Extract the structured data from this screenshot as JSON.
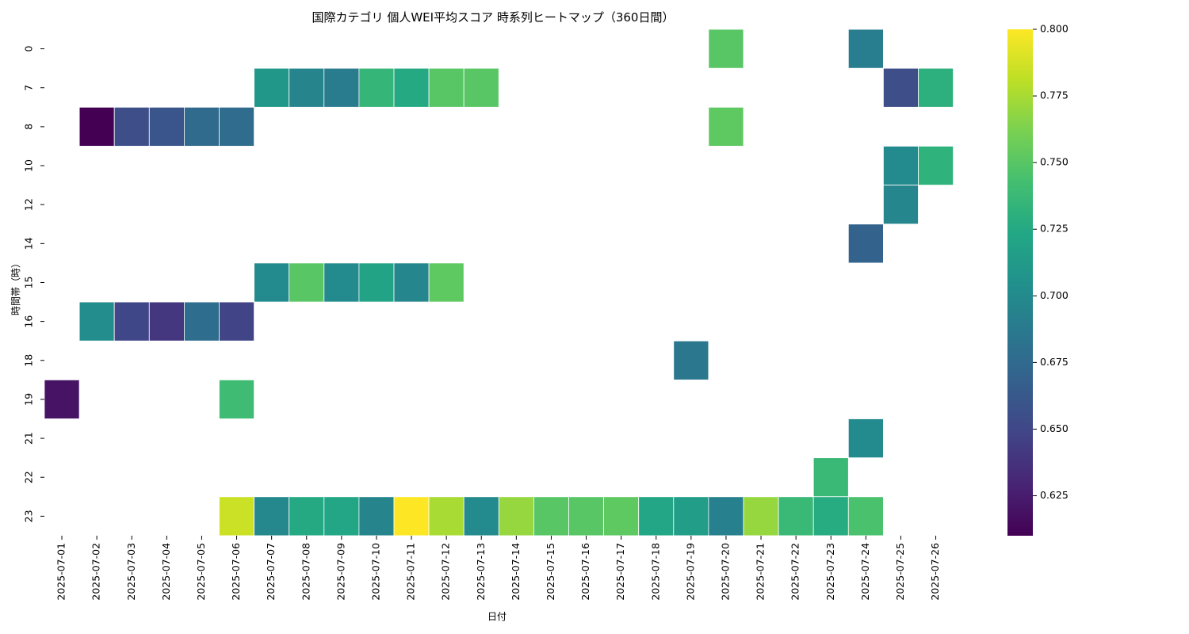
{
  "chart_data": {
    "type": "heatmap",
    "title": "国際カテゴリ 個人WEI平均スコア 時系列ヒートマップ（360日間）",
    "xlabel": "日付",
    "ylabel": "時間帯（時）",
    "colormap": "viridis",
    "colorbar": {
      "min": 0.61,
      "max": 0.8,
      "ticks": [
        0.625,
        0.65,
        0.675,
        0.7,
        0.725,
        0.75,
        0.775,
        0.8
      ],
      "tick_labels": [
        "0.625",
        "0.650",
        "0.675",
        "0.700",
        "0.725",
        "0.750",
        "0.775",
        "0.800"
      ],
      "placement": "right"
    },
    "grid": false,
    "x_categories": [
      "2025-07-01",
      "2025-07-02",
      "2025-07-03",
      "2025-07-04",
      "2025-07-05",
      "2025-07-06",
      "2025-07-07",
      "2025-07-08",
      "2025-07-09",
      "2025-07-10",
      "2025-07-11",
      "2025-07-12",
      "2025-07-13",
      "2025-07-14",
      "2025-07-15",
      "2025-07-16",
      "2025-07-17",
      "2025-07-18",
      "2025-07-19",
      "2025-07-20",
      "2025-07-21",
      "2025-07-22",
      "2025-07-23",
      "2025-07-24",
      "2025-07-25",
      "2025-07-26"
    ],
    "y_categories": [
      "0",
      "7",
      "8",
      "10",
      "12",
      "14",
      "15",
      "16",
      "18",
      "19",
      "21",
      "22",
      "23"
    ],
    "cells": [
      {
        "x": "2025-07-20",
        "y": "0",
        "value": 0.75
      },
      {
        "x": "2025-07-24",
        "y": "0",
        "value": 0.69
      },
      {
        "x": "2025-07-07",
        "y": "7",
        "value": 0.71
      },
      {
        "x": "2025-07-08",
        "y": "7",
        "value": 0.695
      },
      {
        "x": "2025-07-09",
        "y": "7",
        "value": 0.688
      },
      {
        "x": "2025-07-10",
        "y": "7",
        "value": 0.735
      },
      {
        "x": "2025-07-11",
        "y": "7",
        "value": 0.725
      },
      {
        "x": "2025-07-12",
        "y": "7",
        "value": 0.75
      },
      {
        "x": "2025-07-13",
        "y": "7",
        "value": 0.75
      },
      {
        "x": "2025-07-25",
        "y": "7",
        "value": 0.655
      },
      {
        "x": "2025-07-26",
        "y": "7",
        "value": 0.73
      },
      {
        "x": "2025-07-02",
        "y": "8",
        "value": 0.61
      },
      {
        "x": "2025-07-03",
        "y": "8",
        "value": 0.655
      },
      {
        "x": "2025-07-04",
        "y": "8",
        "value": 0.66
      },
      {
        "x": "2025-07-05",
        "y": "8",
        "value": 0.675
      },
      {
        "x": "2025-07-06",
        "y": "8",
        "value": 0.677
      },
      {
        "x": "2025-07-20",
        "y": "8",
        "value": 0.752
      },
      {
        "x": "2025-07-25",
        "y": "10",
        "value": 0.7
      },
      {
        "x": "2025-07-26",
        "y": "10",
        "value": 0.732
      },
      {
        "x": "2025-07-25",
        "y": "12",
        "value": 0.697
      },
      {
        "x": "2025-07-24",
        "y": "14",
        "value": 0.67
      },
      {
        "x": "2025-07-07",
        "y": "15",
        "value": 0.7
      },
      {
        "x": "2025-07-08",
        "y": "15",
        "value": 0.75
      },
      {
        "x": "2025-07-09",
        "y": "15",
        "value": 0.7
      },
      {
        "x": "2025-07-10",
        "y": "15",
        "value": 0.72
      },
      {
        "x": "2025-07-11",
        "y": "15",
        "value": 0.697
      },
      {
        "x": "2025-07-12",
        "y": "15",
        "value": 0.752
      },
      {
        "x": "2025-07-02",
        "y": "16",
        "value": 0.702
      },
      {
        "x": "2025-07-03",
        "y": "16",
        "value": 0.65
      },
      {
        "x": "2025-07-04",
        "y": "16",
        "value": 0.64
      },
      {
        "x": "2025-07-05",
        "y": "16",
        "value": 0.678
      },
      {
        "x": "2025-07-06",
        "y": "16",
        "value": 0.648
      },
      {
        "x": "2025-07-19",
        "y": "18",
        "value": 0.685
      },
      {
        "x": "2025-07-01",
        "y": "19",
        "value": 0.62
      },
      {
        "x": "2025-07-06",
        "y": "19",
        "value": 0.74
      },
      {
        "x": "2025-07-24",
        "y": "21",
        "value": 0.7
      },
      {
        "x": "2025-07-23",
        "y": "22",
        "value": 0.737
      },
      {
        "x": "2025-07-06",
        "y": "23",
        "value": 0.785
      },
      {
        "x": "2025-07-07",
        "y": "23",
        "value": 0.698
      },
      {
        "x": "2025-07-08",
        "y": "23",
        "value": 0.725
      },
      {
        "x": "2025-07-09",
        "y": "23",
        "value": 0.722
      },
      {
        "x": "2025-07-10",
        "y": "23",
        "value": 0.695
      },
      {
        "x": "2025-07-11",
        "y": "23",
        "value": 0.8
      },
      {
        "x": "2025-07-12",
        "y": "23",
        "value": 0.775
      },
      {
        "x": "2025-07-13",
        "y": "23",
        "value": 0.7
      },
      {
        "x": "2025-07-14",
        "y": "23",
        "value": 0.77
      },
      {
        "x": "2025-07-15",
        "y": "23",
        "value": 0.75
      },
      {
        "x": "2025-07-16",
        "y": "23",
        "value": 0.75
      },
      {
        "x": "2025-07-17",
        "y": "23",
        "value": 0.752
      },
      {
        "x": "2025-07-18",
        "y": "23",
        "value": 0.722
      },
      {
        "x": "2025-07-19",
        "y": "23",
        "value": 0.715
      },
      {
        "x": "2025-07-20",
        "y": "23",
        "value": 0.692
      },
      {
        "x": "2025-07-21",
        "y": "23",
        "value": 0.77
      },
      {
        "x": "2025-07-22",
        "y": "23",
        "value": 0.737
      },
      {
        "x": "2025-07-23",
        "y": "23",
        "value": 0.727
      },
      {
        "x": "2025-07-24",
        "y": "23",
        "value": 0.745
      }
    ]
  }
}
